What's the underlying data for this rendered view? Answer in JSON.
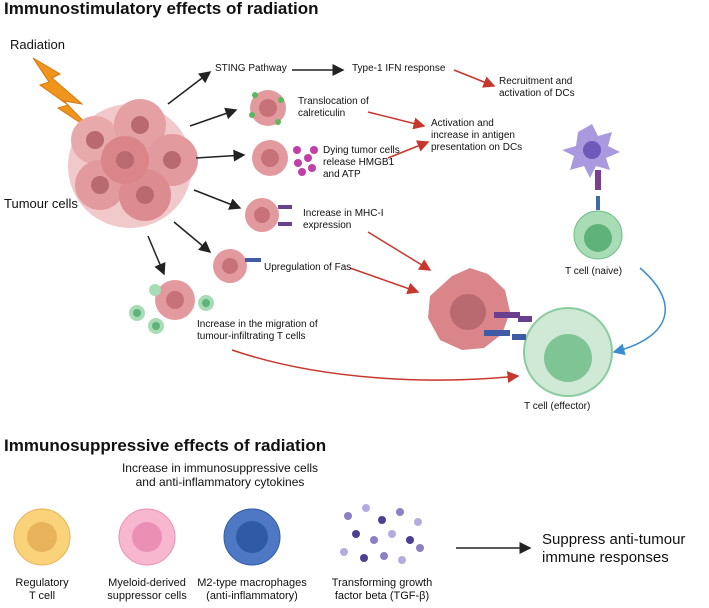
{
  "top_section": {
    "title": "Immunostimulatory effects of radiation",
    "radiation": "Radiation",
    "tumour_cells": "Tumour cells",
    "sting": "STING Pathway",
    "ifn": "Type-1 IFN response",
    "recruitment": "Recruitment and\nactivation of DCs",
    "calreticulin": "Translocation of\ncalreticulin",
    "activation": "Activation and\nincrease in antigen\npresentation on DCs",
    "hmgb1": "Dying tumor cells\nrelease HMGB1\nand ATP",
    "mhc": "Increase in MHC-I\nexpression",
    "fas": "Upregulation of Fas",
    "migration": "Increase in the migration of\ntumour-infiltrating T cells",
    "t_naive": "T cell (naive)",
    "t_effector": "T cell (effector)"
  },
  "bottom_section": {
    "title": "Immunosuppressive effects of radiation",
    "subtitle": "Increase in immunosuppressive cells\nand anti-inflammatory cytokines",
    "cells": [
      {
        "label": "Regulatory\nT cell",
        "outer": "#f9d27a",
        "inner": "#e8b35a"
      },
      {
        "label": "Myeloid-derived\nsuppressor cells",
        "outer": "#f7b7cf",
        "inner": "#ec8fb5"
      },
      {
        "label": "M2-type macrophages\n(anti-inflammatory)",
        "outer": "#4f78c4",
        "inner": "#2f5aa6"
      },
      {
        "label": "Transforming growth\nfactor beta (TGF-β)",
        "outer": "#8d7fc4",
        "inner": "#4d3f92"
      }
    ],
    "outcome": "Suppress anti-tumour\nimmune responses"
  },
  "colors": {
    "red_arrow": "#c8372d",
    "black_arrow": "#222222",
    "blue_arrow": "#3a8bd0",
    "lightning": "#f0941c",
    "tumour": "#d9858a",
    "t_cell": "#a8dcb5"
  }
}
